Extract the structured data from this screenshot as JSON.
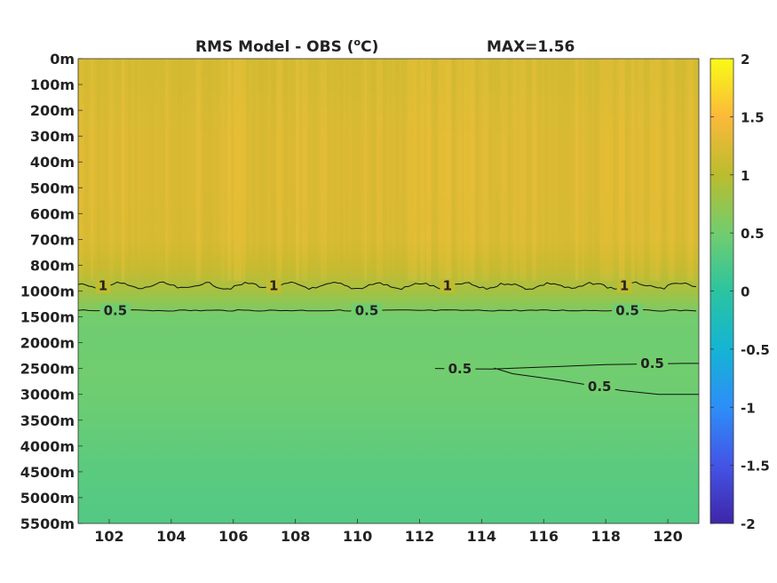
{
  "chart_data": {
    "type": "heatmap",
    "title": "RMS Model - OBS (",
    "title_unit_sup": "o",
    "title_unit_tail": "C)",
    "max_label": "MAX=1.56",
    "xlabel": "",
    "ylabel": "",
    "x_ticks": [
      "102",
      "104",
      "106",
      "108",
      "110",
      "112",
      "114",
      "116",
      "118",
      "120"
    ],
    "x_tick_values": [
      102,
      104,
      106,
      108,
      110,
      112,
      114,
      116,
      118,
      120
    ],
    "xlim": [
      101,
      121
    ],
    "y_ticks": [
      "0m",
      "100m",
      "200m",
      "300m",
      "400m",
      "500m",
      "600m",
      "700m",
      "800m",
      "1000m",
      "1500m",
      "2000m",
      "2500m",
      "3000m",
      "3500m",
      "4000m",
      "4500m",
      "5000m",
      "5500m"
    ],
    "colorbar": {
      "range": [
        -2,
        2
      ],
      "ticks": [
        "2",
        "1.5",
        "1",
        "0.5",
        "0",
        "-0.5",
        "-1",
        "-1.5",
        "-2"
      ],
      "tick_values": [
        2,
        1.5,
        1,
        0.5,
        0,
        -0.5,
        -1,
        -1.5,
        -2
      ],
      "colormap": [
        "#3e26a8",
        "#4454e6",
        "#2d8ef8",
        "#14b4d3",
        "#2bc4a0",
        "#72cd6e",
        "#bbbc2e",
        "#fbb93a",
        "#f9fb15"
      ]
    },
    "levels": [
      {
        "depth_index": 0,
        "value": 1.2
      },
      {
        "depth_index": 1,
        "value": 1.22
      },
      {
        "depth_index": 2,
        "value": 1.25
      },
      {
        "depth_index": 3,
        "value": 1.27
      },
      {
        "depth_index": 4,
        "value": 1.27
      },
      {
        "depth_index": 5,
        "value": 1.27
      },
      {
        "depth_index": 6,
        "value": 1.26
      },
      {
        "depth_index": 7,
        "value": 1.24
      },
      {
        "depth_index": 8,
        "value": 1.12
      },
      {
        "depth_index": 9,
        "value": 0.85
      },
      {
        "depth_index": 10,
        "value": 0.5
      },
      {
        "depth_index": 11,
        "value": 0.47
      },
      {
        "depth_index": 12,
        "value": 0.49
      },
      {
        "depth_index": 13,
        "value": 0.47
      },
      {
        "depth_index": 14,
        "value": 0.42
      },
      {
        "depth_index": 15,
        "value": 0.38
      },
      {
        "depth_index": 16,
        "value": 0.33
      },
      {
        "depth_index": 17,
        "value": 0.3
      },
      {
        "depth_index": 18,
        "value": 0.28
      }
    ],
    "contours": [
      {
        "level": "1",
        "depth_index": 8.8,
        "labels_at_lon": [
          101.8,
          107.3,
          112.9,
          118.6
        ]
      },
      {
        "level": "0.5",
        "depth_index": 9.75,
        "labels_at_lon": [
          102.2,
          110.3,
          118.7
        ]
      },
      {
        "level": "0.5",
        "depth_index": 12.0,
        "x_start": 112.5,
        "labels_at_lon": [
          113.3,
          119.5
        ]
      },
      {
        "level": "0.5",
        "depth_index": 12.6,
        "x_start": 114.4,
        "labels_at_lon": [
          117.8
        ]
      }
    ]
  }
}
